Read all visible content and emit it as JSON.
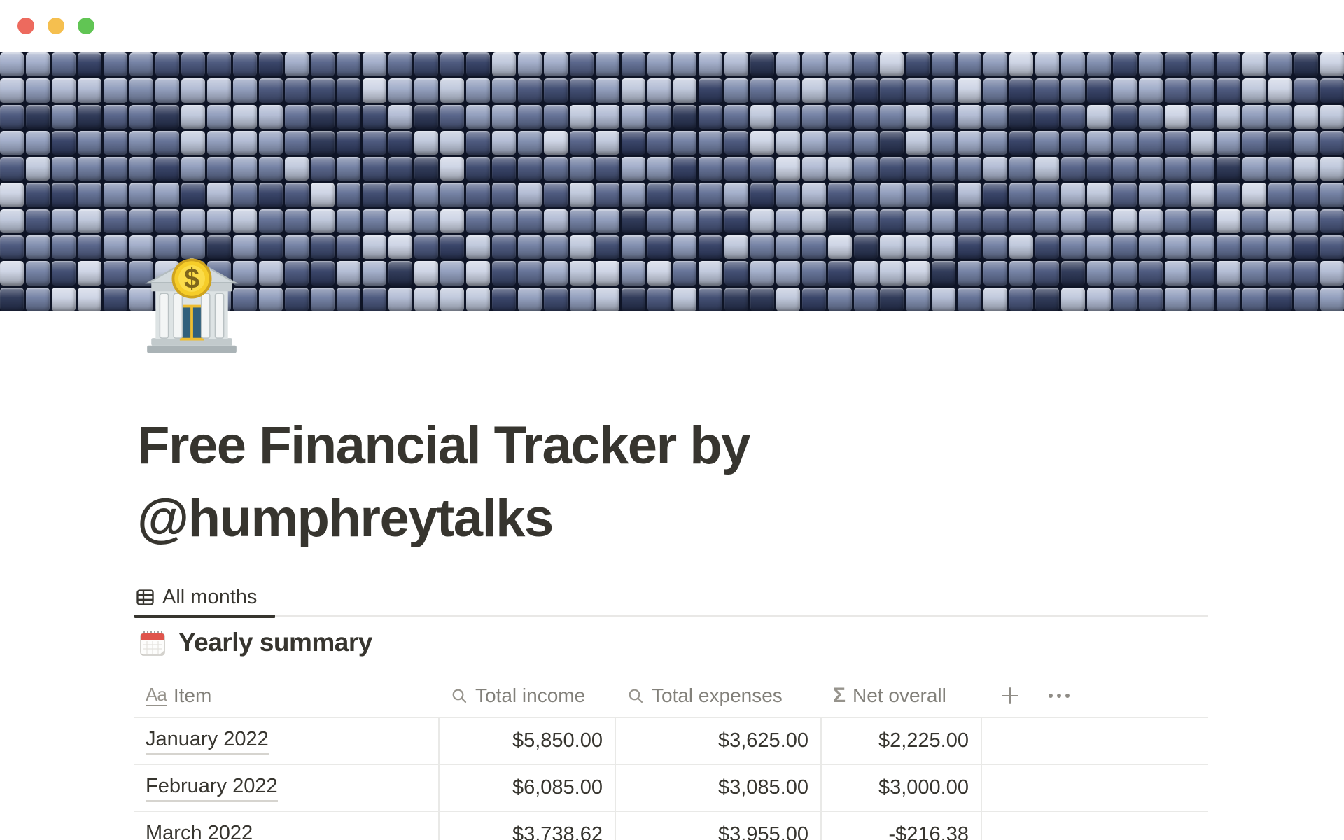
{
  "window": {
    "traffic_lights": [
      {
        "name": "close",
        "color": "#ed6a5e"
      },
      {
        "name": "minimize",
        "color": "#f5bf4f"
      },
      {
        "name": "zoom",
        "color": "#61c554"
      }
    ]
  },
  "page": {
    "icon": "bank-emoji",
    "title": "Free Financial Tracker by @humphreytalks",
    "cover": "blue-gray pixel block mosaic"
  },
  "tabs": [
    {
      "label": "All months",
      "icon": "table-view-icon",
      "active": true
    }
  ],
  "section": {
    "icon": "calendar-emoji",
    "title": "Yearly summary"
  },
  "table": {
    "columns": [
      {
        "label": "Item",
        "icon": "title-icon"
      },
      {
        "label": "Total income",
        "icon": "rollup-icon"
      },
      {
        "label": "Total expenses",
        "icon": "rollup-icon"
      },
      {
        "label": "Net overall",
        "icon": "formula-icon"
      }
    ],
    "controls": {
      "add_column": "+",
      "more": "⋯"
    },
    "rows": [
      {
        "item": "January 2022",
        "total_income": "$5,850.00",
        "total_expenses": "$3,625.00",
        "net_overall": "$2,225.00"
      },
      {
        "item": "February 2022",
        "total_income": "$6,085.00",
        "total_expenses": "$3,085.00",
        "net_overall": "$3,000.00"
      },
      {
        "item": "March 2022",
        "total_income": "$3,738.62",
        "total_expenses": "$3,955.00",
        "net_overall": "-$216.38"
      }
    ]
  },
  "colors": {
    "text_dark": "#37352f",
    "text_gray": "#82807a",
    "icon_gray": "#96938c",
    "divider": "#e9e9e7",
    "tab_divider": "#e9e8e6",
    "link_underline": "#d6d4cf",
    "cover_gap": "#0e1426",
    "cover_palette": [
      "#ccd3e4",
      "#bec7db",
      "#b0bad3",
      "#9fabc8",
      "#8e9bbb",
      "#7d8bad",
      "#6f7da1",
      "#5f6d93",
      "#525f86",
      "#46537a",
      "#3a476d",
      "#303c62",
      "#273252",
      "#8e9bbb",
      "#5f6d93",
      "#bec7db",
      "#46537a",
      "#6f7da1"
    ]
  }
}
